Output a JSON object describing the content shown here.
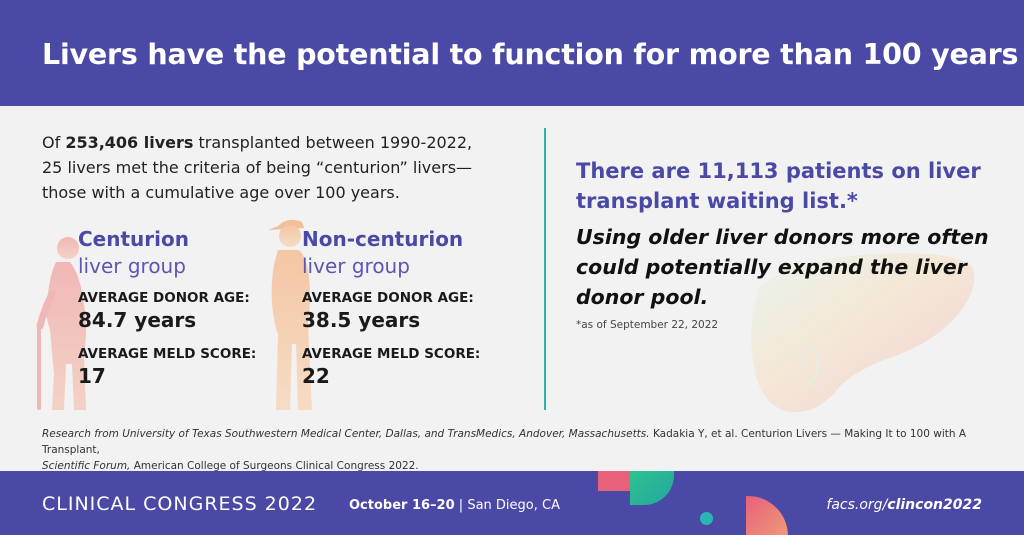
{
  "header": {
    "title": "Livers have the potential to function for more than 100 years"
  },
  "intro": {
    "prefix": "Of ",
    "count_bold": "253,406 livers",
    "line1_rest": " transplanted between 1990-2022,",
    "line2": "25 livers met the criteria of being “centurion” livers—",
    "line3": "those with a cumulative age over 100 years."
  },
  "centurion": {
    "title": "Centurion",
    "subtitle": "liver group",
    "donor_age_label": "AVERAGE DONOR AGE:",
    "donor_age_value": "84.7 years",
    "meld_label": "AVERAGE MELD SCORE:",
    "meld_value": "17"
  },
  "non_centurion": {
    "title": "Non-centurion",
    "subtitle": "liver group",
    "donor_age_label": "AVERAGE DONOR AGE:",
    "donor_age_value": "38.5 years",
    "meld_label": "AVERAGE MELD SCORE:",
    "meld_value": "22"
  },
  "right": {
    "headline": "There are 11,113 patients on liver transplant waiting list.*",
    "body": "Using older liver donors more often could potentially expand the liver donor pool.",
    "footnote": "*as of September 22, 2022"
  },
  "citation": {
    "italic_part": "Research from University of Texas Southwestern Medical Center, Dallas, and TransMedics, Andover, Massachusetts.",
    "normal_part": " Kadakia Y, et al. Centurion Livers — Making It to 100 with A Transplant,",
    "line2_italic": "Scientific Forum,",
    "line2_normal": " American College of Surgeons Clinical Congress 2022."
  },
  "footer": {
    "event": "CLINICAL CONGRESS 2022",
    "dates": "October 16–20",
    "separator": " | ",
    "location": "San Diego, CA",
    "url_prefix": "facs.org/",
    "url_bold": "clincon2022"
  },
  "colors": {
    "brand_purple": "#4b49a6",
    "accent_teal": "#2bb5b0",
    "accent_coral": "#e8607a",
    "accent_green": "#2ec28f"
  },
  "icons": {
    "elderly_figure": "elderly-person-with-cane-icon",
    "young_figure": "person-with-cap-icon",
    "liver": "liver-illustration-icon"
  }
}
